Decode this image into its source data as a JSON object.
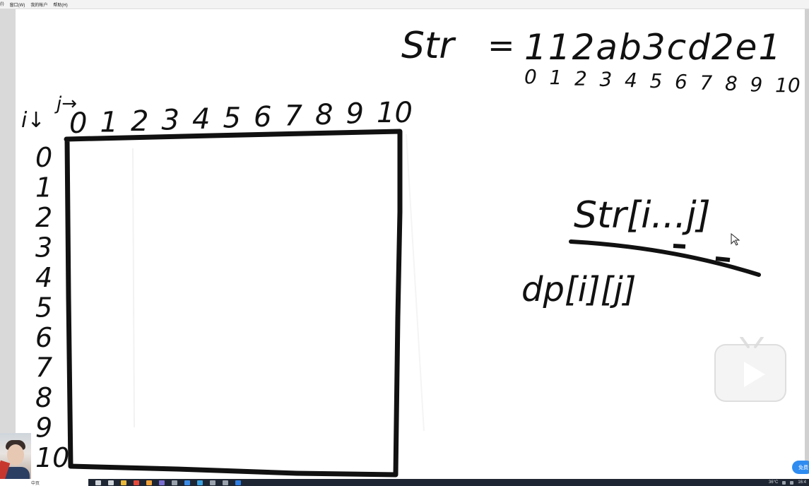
{
  "menubar": {
    "items": [
      "(I)",
      "窗口(W)",
      "我的帐户",
      "帮助(H)"
    ]
  },
  "board": {
    "str_label": "Str",
    "equals": "=",
    "str_value": "112ab3cd2e1",
    "str_indices": [
      "0",
      "1",
      "2",
      "3",
      "4",
      "5",
      "6",
      "7",
      "8",
      "9",
      "10"
    ],
    "j_label": "j→",
    "i_label": "i↓",
    "col_indices": [
      "0",
      "1",
      "2",
      "3",
      "4",
      "5",
      "6",
      "7",
      "8",
      "9",
      "10"
    ],
    "row_indices": [
      "0",
      "1",
      "2",
      "3",
      "4",
      "5",
      "6",
      "7",
      "8",
      "9",
      "10"
    ],
    "substr_label": "Str[i...j]",
    "dp_label": "dp[i][j]"
  },
  "overlay": {
    "badge_label": "免费"
  },
  "taskbar": {
    "search_text": "中页",
    "temperature": "36°C",
    "time": "16:4"
  },
  "icons": [
    "search-icon",
    "task-view-icon",
    "folder-icon",
    "chrome-icon",
    "browser-icon",
    "app-icon",
    "app-icon",
    "store-icon",
    "app-icon",
    "app-icon",
    "app-icon",
    "user-icon"
  ],
  "colors": {
    "ink": "#111111",
    "taskbar": "#1f2633",
    "badge": "#2e8cf0"
  }
}
